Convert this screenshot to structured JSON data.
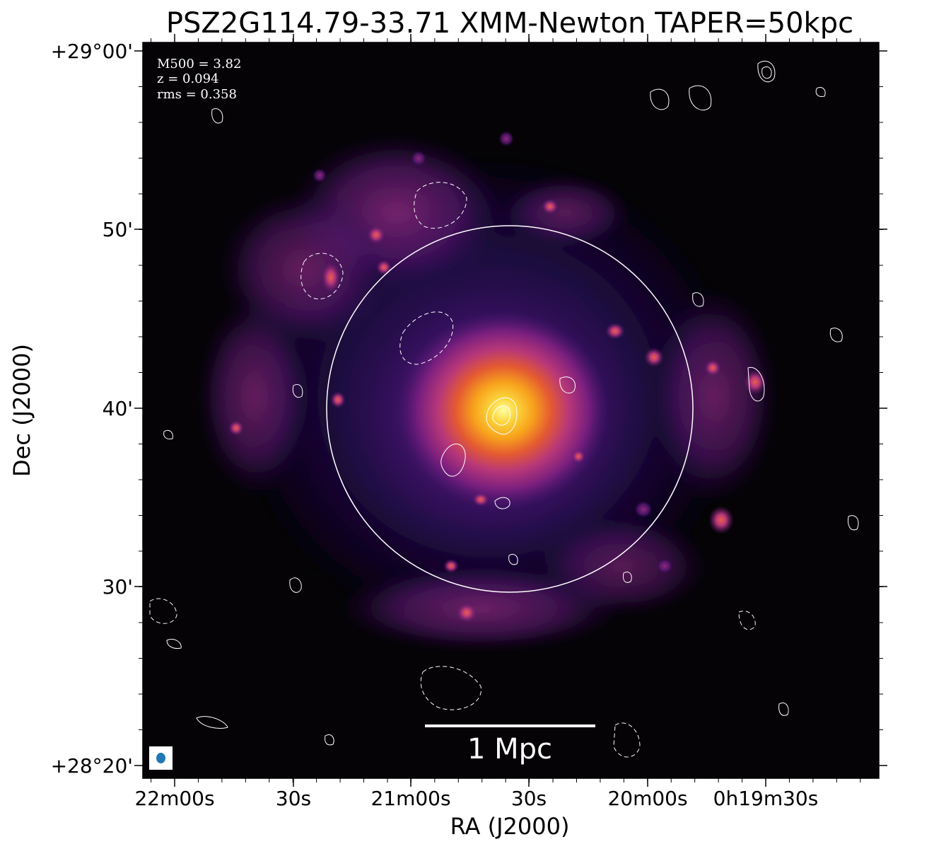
{
  "chart_data": {
    "type": "heatmap",
    "title": "PSZ2G114.79-33.71 XMM-Newton TAPER=50kpc",
    "xlabel": "RA (J2000)",
    "ylabel": "Dec (J2000)",
    "colormap": "inferno",
    "background_color": "#050306",
    "contour_color": "#ffffff",
    "grid": false,
    "x_tick_labels": [
      "22m00s",
      "30s",
      "21m00s",
      "30s",
      "20m00s",
      "0h19m30s"
    ],
    "y_tick_labels": [
      "+29°00'",
      "50'",
      "40'",
      "30'",
      "+28°20'"
    ],
    "annotations": {
      "m500": "M500 = 3.82",
      "redshift": "z = 0.094",
      "rms": "rms = 0.358"
    },
    "scale_bar_label": "1 Mpc",
    "r500_circle": {
      "shown": true
    },
    "beam": {
      "shown": true,
      "color": "#1f77b4"
    }
  }
}
